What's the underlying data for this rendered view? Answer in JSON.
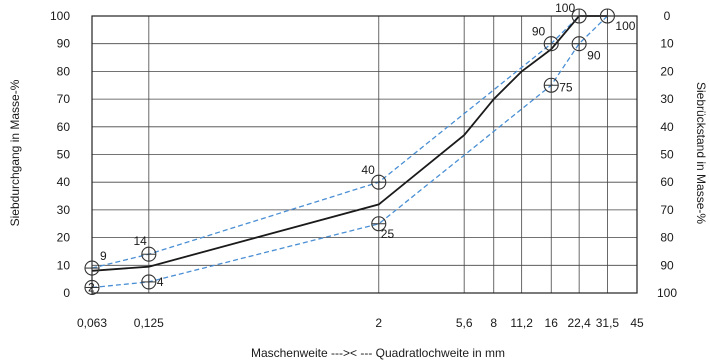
{
  "chart_data": {
    "type": "line",
    "xscale": "log",
    "x_ticks": [
      "0,063",
      "0,125",
      "2",
      "5,6",
      "8",
      "11,2",
      "16",
      "22,4",
      "31,5",
      "45"
    ],
    "x_tick_values": [
      0.063,
      0.125,
      2,
      5.6,
      8,
      11.2,
      16,
      22.4,
      31.5,
      45
    ],
    "xlim": [
      0.063,
      45
    ],
    "ylim": [
      0,
      100
    ],
    "y_ticks": [
      0,
      10,
      20,
      30,
      40,
      50,
      60,
      70,
      80,
      90,
      100
    ],
    "y2_ticks": [
      100,
      90,
      80,
      70,
      60,
      50,
      40,
      30,
      20,
      10,
      0
    ],
    "ylabel": "Siebdurchgang in Masse-%",
    "y2label": "Siebrückstand in Masse-%",
    "xlabel": "Maschenweite --->< --- Quadratlochweite in mm",
    "grid": true,
    "series": [
      {
        "role": "upper-limit",
        "style": "dashed",
        "color": "#4a8fd4",
        "x": [
          0.063,
          0.125,
          2,
          16,
          22.4
        ],
        "y": [
          9,
          14,
          40,
          90,
          100
        ],
        "labels": [
          "9",
          "14",
          "40",
          "90",
          "100"
        ]
      },
      {
        "role": "lower-limit",
        "style": "dashed",
        "color": "#4a8fd4",
        "x": [
          0.063,
          0.125,
          2,
          16,
          22.4,
          31.5
        ],
        "y": [
          2,
          4,
          25,
          75,
          90,
          100
        ],
        "labels": [
          "2",
          "4",
          "25",
          "75",
          "90",
          "100"
        ]
      },
      {
        "role": "grading-curve",
        "style": "solid",
        "color": "#1a1a1a",
        "x": [
          0.063,
          0.125,
          2,
          5.6,
          8,
          11.2,
          16,
          22.4,
          31.5
        ],
        "y": [
          8,
          9.5,
          32,
          57,
          70,
          80,
          88,
          100,
          100
        ]
      }
    ],
    "circle_markers": [
      {
        "x": 0.063,
        "y": 9
      },
      {
        "x": 0.063,
        "y": 2
      },
      {
        "x": 0.125,
        "y": 14
      },
      {
        "x": 0.125,
        "y": 4
      },
      {
        "x": 2,
        "y": 40
      },
      {
        "x": 2,
        "y": 25
      },
      {
        "x": 16,
        "y": 90
      },
      {
        "x": 16,
        "y": 75
      },
      {
        "x": 22.4,
        "y": 100
      },
      {
        "x": 22.4,
        "y": 90
      },
      {
        "x": 31.5,
        "y": 100
      }
    ]
  }
}
